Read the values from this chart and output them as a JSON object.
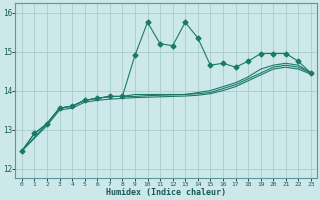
{
  "xlabel": "Humidex (Indice chaleur)",
  "bg_color": "#cce8e8",
  "grid_color": "#aacccc",
  "line_color": "#1a7a6a",
  "xlim": [
    -0.5,
    23.5
  ],
  "ylim": [
    11.75,
    16.25
  ],
  "yticks": [
    12,
    13,
    14,
    15,
    16
  ],
  "xticks": [
    0,
    1,
    2,
    3,
    4,
    5,
    6,
    7,
    8,
    9,
    10,
    11,
    12,
    13,
    14,
    15,
    16,
    17,
    18,
    19,
    20,
    21,
    22,
    23
  ],
  "line1_x": [
    0,
    1,
    2,
    3,
    4,
    5,
    6,
    7,
    8,
    9,
    10,
    11,
    12,
    13,
    14,
    15,
    16,
    17,
    18,
    19,
    20,
    21,
    22,
    23
  ],
  "line1_y": [
    12.45,
    12.9,
    13.15,
    13.55,
    13.6,
    13.75,
    13.8,
    13.85,
    13.85,
    14.9,
    15.75,
    15.2,
    15.15,
    15.75,
    15.35,
    14.65,
    14.7,
    14.6,
    14.75,
    14.95,
    14.95,
    14.95,
    14.75,
    14.45
  ],
  "line2_x": [
    0,
    1,
    2,
    3,
    4,
    5,
    6,
    7,
    8,
    9,
    10,
    11,
    12,
    13,
    14,
    15,
    16,
    17,
    18,
    19,
    20,
    21,
    22,
    23
  ],
  "line2_y": [
    12.45,
    12.9,
    13.15,
    13.55,
    13.6,
    13.75,
    13.8,
    13.85,
    13.85,
    13.9,
    13.9,
    13.9,
    13.9,
    13.9,
    13.95,
    14.0,
    14.1,
    14.2,
    14.35,
    14.55,
    14.65,
    14.7,
    14.65,
    14.45
  ],
  "line3_x": [
    0,
    2,
    3,
    4,
    5,
    6,
    7,
    8,
    9,
    10,
    11,
    12,
    13,
    14,
    15,
    16,
    17,
    18,
    19,
    20,
    21,
    22,
    23
  ],
  "line3_y": [
    12.45,
    13.15,
    13.55,
    13.6,
    13.75,
    13.8,
    13.85,
    13.85,
    13.85,
    13.87,
    13.88,
    13.89,
    13.9,
    13.92,
    13.95,
    14.05,
    14.15,
    14.3,
    14.45,
    14.6,
    14.65,
    14.6,
    14.45
  ],
  "line4_x": [
    0,
    2,
    3,
    4,
    5,
    6,
    7,
    8,
    9,
    10,
    11,
    12,
    13,
    14,
    15,
    16,
    17,
    18,
    19,
    20,
    21,
    22,
    23
  ],
  "line4_y": [
    12.45,
    13.1,
    13.5,
    13.55,
    13.7,
    13.75,
    13.78,
    13.8,
    13.82,
    13.83,
    13.84,
    13.85,
    13.86,
    13.88,
    13.92,
    14.0,
    14.1,
    14.25,
    14.4,
    14.55,
    14.6,
    14.55,
    14.42
  ]
}
